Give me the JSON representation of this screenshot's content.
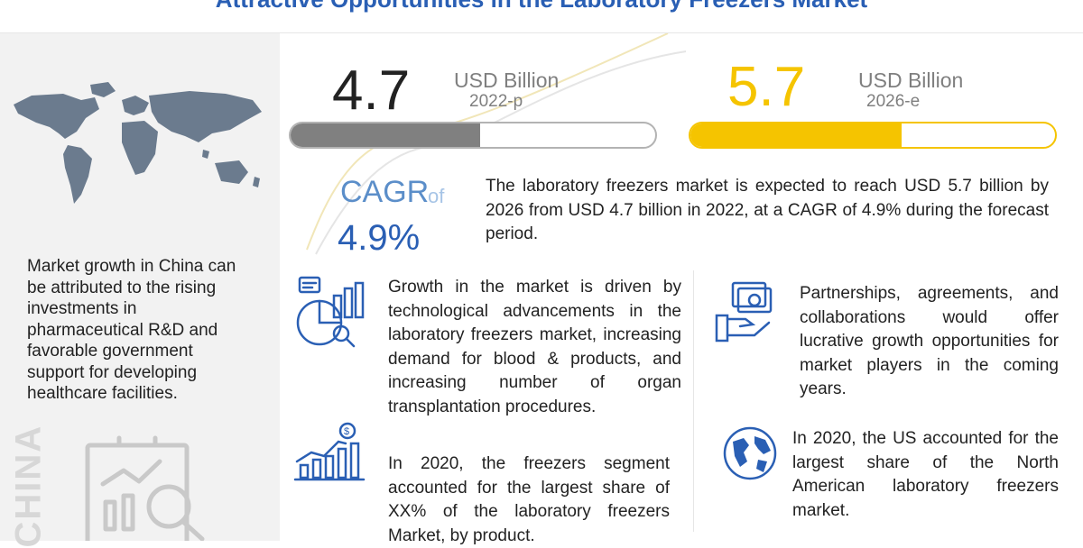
{
  "title": "Attractive Opportunities in the Laboratory Freezers Market",
  "left_panel": {
    "insight": "Market growth in China can be attributed to the rising investments in pharmaceutical R&D and favorable government support for developing healthcare facilities.",
    "country_label": "CHINA"
  },
  "metrics": [
    {
      "value": "4.7",
      "unit": "USD Billion",
      "year": "2022-p",
      "bar_fill_fraction": 0.52,
      "color": "#808080"
    },
    {
      "value": "5.7",
      "unit": "USD Billion",
      "year": "2026-e",
      "bar_fill_fraction": 0.58,
      "color": "#f5c400"
    }
  ],
  "cagr": {
    "label": "CAGR",
    "of": "of",
    "value": "4.9%",
    "description": "The laboratory freezers market is expected to reach USD 5.7 billion by 2026 from USD 4.7 billion in 2022, at a CAGR of 4.9% during the forecast period."
  },
  "highlights": [
    {
      "icon": "analytics-icon",
      "text": "Growth in the market is driven by technological advancements in the laboratory freezers market, increasing demand for blood & products, and increasing number of organ transplantation procedures."
    },
    {
      "icon": "growth-chart-icon",
      "text": "In 2020, the freezers segment accounted for the largest share of XX% of the laboratory freezers Market, by product."
    },
    {
      "icon": "money-hand-icon",
      "text": "Partnerships, agreements, and collaborations would offer lucrative growth opportunities for market players in the coming years."
    },
    {
      "icon": "globe-icon",
      "text": "In 2020, the US accounted for the largest share of the North American laboratory freezers market."
    }
  ],
  "colors": {
    "title": "#2a5fb4",
    "accent_yellow": "#f5c400",
    "gray_bar": "#808080",
    "cagr_blue": "#2a5fb4"
  }
}
